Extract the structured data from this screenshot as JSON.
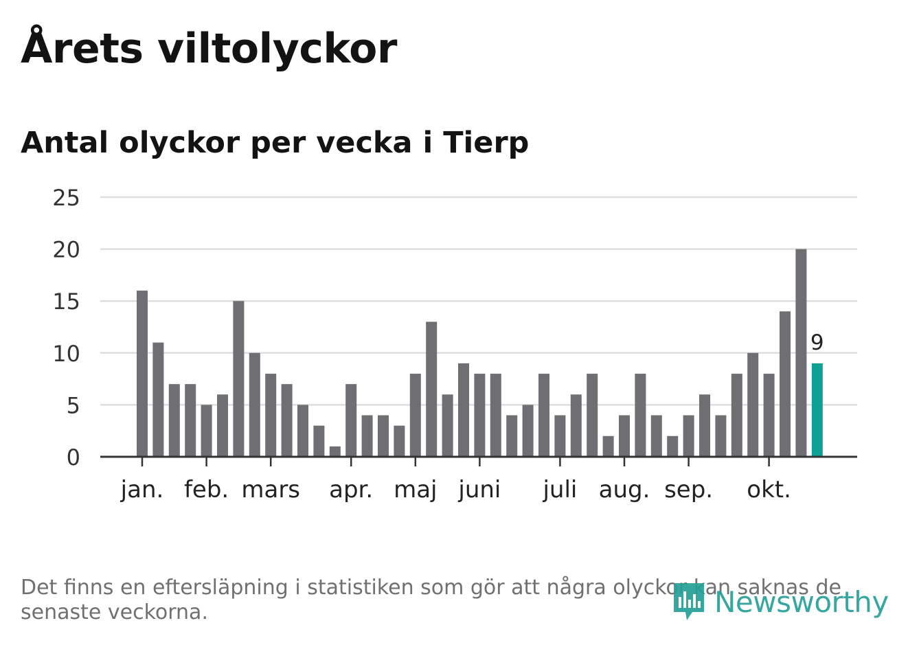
{
  "header": {
    "title": "Årets viltolyckor",
    "subtitle": "Antal olyckor per vecka i Tierp"
  },
  "footer": {
    "note": "Det finns en eftersläpning i statistiken som gör att några olyckor kan saknas de senaste veckorna.",
    "brand": "Newsworthy"
  },
  "colors": {
    "bar": "#6f6e73",
    "highlight": "#0fa095",
    "grid": "#dedede",
    "axis": "#333333",
    "text": "#333333",
    "brand": "#26a096"
  },
  "chart_data": {
    "type": "bar",
    "title": "Antal olyckor per vecka i Tierp",
    "xlabel": "",
    "ylabel": "",
    "ylim": [
      0,
      25
    ],
    "yticks": [
      "0",
      "5",
      "10",
      "15",
      "20",
      "25"
    ],
    "values": [
      16,
      11,
      7,
      7,
      5,
      6,
      15,
      10,
      8,
      7,
      5,
      3,
      1,
      7,
      4,
      4,
      3,
      8,
      13,
      6,
      9,
      8,
      8,
      4,
      5,
      8,
      4,
      6,
      8,
      2,
      4,
      8,
      4,
      2,
      4,
      6,
      4,
      8,
      10,
      8,
      14,
      20,
      9
    ],
    "highlight_index": 42,
    "highlight_label": "9",
    "month_labels": [
      {
        "label": "jan.",
        "bar": 0
      },
      {
        "label": "feb.",
        "bar": 4
      },
      {
        "label": "mars",
        "bar": 8
      },
      {
        "label": "apr.",
        "bar": 13
      },
      {
        "label": "maj",
        "bar": 17
      },
      {
        "label": "juni",
        "bar": 21
      },
      {
        "label": "juli",
        "bar": 26
      },
      {
        "label": "aug.",
        "bar": 30
      },
      {
        "label": "sep.",
        "bar": 34
      },
      {
        "label": "okt.",
        "bar": 39
      }
    ]
  }
}
